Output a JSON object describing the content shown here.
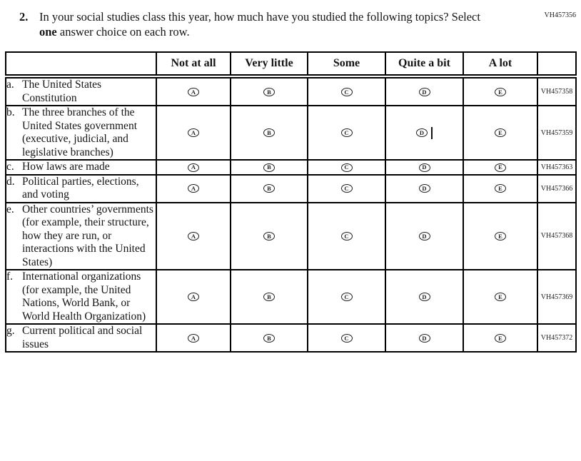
{
  "page": {
    "corner_code": "VH457356"
  },
  "question": {
    "number": "2.",
    "text_before_bold": "In your social studies class this year, how much have you studied the following topics? Select ",
    "bold_word": "one",
    "text_after_bold": " answer choice on each row."
  },
  "table": {
    "column_headers": [
      "Not at all",
      "Very little",
      "Some",
      "Quite a bit",
      "A lot"
    ],
    "option_letters": [
      "A",
      "B",
      "C",
      "D",
      "E"
    ],
    "rows": [
      {
        "letter": "a.",
        "topic": "The United States Constitution",
        "code": "VH457358",
        "caret_after_option": null
      },
      {
        "letter": "b.",
        "topic": "The three branches of the United States government (executive, judicial, and legislative branches)",
        "code": "VH457359",
        "caret_after_option": "D"
      },
      {
        "letter": "c.",
        "topic": "How laws are made",
        "code": "VH457363",
        "caret_after_option": null
      },
      {
        "letter": "d.",
        "topic": "Political parties, elections, and voting",
        "code": "VH457366",
        "caret_after_option": null
      },
      {
        "letter": "e.",
        "topic": "Other countries’ governments (for example, their structure, how they are run, or interactions with the United States)",
        "code": "VH457368",
        "caret_after_option": null
      },
      {
        "letter": "f.",
        "topic": "International organizations (for example, the United Nations, World Bank, or World Health Organization)",
        "code": "VH457369",
        "caret_after_option": null
      },
      {
        "letter": "g.",
        "topic": "Current political and social issues",
        "code": "VH457372",
        "caret_after_option": null
      }
    ]
  }
}
